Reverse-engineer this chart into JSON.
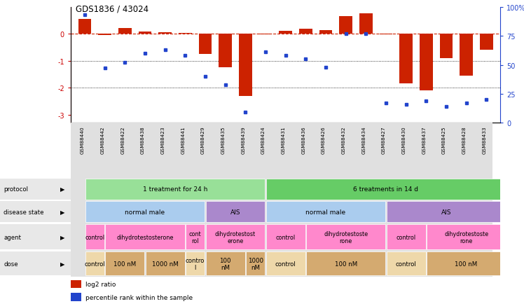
{
  "title": "GDS1836 / 43024",
  "samples": [
    "GSM88440",
    "GSM88442",
    "GSM88422",
    "GSM88438",
    "GSM88423",
    "GSM88441",
    "GSM88429",
    "GSM88435",
    "GSM88439",
    "GSM88424",
    "GSM88431",
    "GSM88436",
    "GSM88426",
    "GSM88432",
    "GSM88434",
    "GSM88427",
    "GSM88430",
    "GSM88437",
    "GSM88425",
    "GSM88428",
    "GSM88433"
  ],
  "log2_ratio": [
    0.55,
    -0.05,
    0.22,
    0.08,
    0.05,
    0.03,
    -0.75,
    -1.25,
    -2.3,
    -0.03,
    0.12,
    0.18,
    0.15,
    0.65,
    0.75,
    -0.03,
    -1.85,
    -2.1,
    -0.9,
    -1.55,
    -0.6
  ],
  "percentile_rank": [
    93,
    47,
    52,
    60,
    63,
    58,
    40,
    33,
    9,
    61,
    58,
    55,
    48,
    77,
    77,
    17,
    16,
    19,
    14,
    17,
    20
  ],
  "protocol_groups": [
    {
      "label": "1 treatment for 24 h",
      "start": 0,
      "end": 8,
      "color": "#98E098"
    },
    {
      "label": "6 treatments in 14 d",
      "start": 9,
      "end": 20,
      "color": "#66CC66"
    }
  ],
  "disease_state_groups": [
    {
      "label": "normal male",
      "start": 0,
      "end": 5,
      "color": "#AACCEE"
    },
    {
      "label": "AIS",
      "start": 6,
      "end": 8,
      "color": "#AA88CC"
    },
    {
      "label": "normal male",
      "start": 9,
      "end": 14,
      "color": "#AACCEE"
    },
    {
      "label": "AIS",
      "start": 15,
      "end": 20,
      "color": "#AA88CC"
    }
  ],
  "agent_groups": [
    {
      "label": "control",
      "start": 0,
      "end": 0,
      "color": "#FF88CC"
    },
    {
      "label": "dihydrotestosterone",
      "start": 1,
      "end": 4,
      "color": "#FF88CC"
    },
    {
      "label": "cont\nrol",
      "start": 5,
      "end": 5,
      "color": "#FF88CC"
    },
    {
      "label": "dihydrotestost\nerone",
      "start": 6,
      "end": 8,
      "color": "#FF88CC"
    },
    {
      "label": "control",
      "start": 9,
      "end": 10,
      "color": "#FF88CC"
    },
    {
      "label": "dihydrotestoste\nrone",
      "start": 11,
      "end": 14,
      "color": "#FF88CC"
    },
    {
      "label": "control",
      "start": 15,
      "end": 16,
      "color": "#FF88CC"
    },
    {
      "label": "dihydrotestoste\nrone",
      "start": 17,
      "end": 20,
      "color": "#FF88CC"
    }
  ],
  "dose_groups": [
    {
      "label": "control",
      "start": 0,
      "end": 0,
      "color": "#EED8AA"
    },
    {
      "label": "100 nM",
      "start": 1,
      "end": 2,
      "color": "#D4AA70"
    },
    {
      "label": "1000 nM",
      "start": 3,
      "end": 4,
      "color": "#D4AA70"
    },
    {
      "label": "contro\nl",
      "start": 5,
      "end": 5,
      "color": "#EED8AA"
    },
    {
      "label": "100\nnM",
      "start": 6,
      "end": 7,
      "color": "#D4AA70"
    },
    {
      "label": "1000\nnM",
      "start": 8,
      "end": 8,
      "color": "#D4AA70"
    },
    {
      "label": "control",
      "start": 9,
      "end": 10,
      "color": "#EED8AA"
    },
    {
      "label": "100 nM",
      "start": 11,
      "end": 14,
      "color": "#D4AA70"
    },
    {
      "label": "control",
      "start": 15,
      "end": 16,
      "color": "#EED8AA"
    },
    {
      "label": "100 nM",
      "start": 17,
      "end": 20,
      "color": "#D4AA70"
    }
  ],
  "bar_color": "#CC2200",
  "dot_color": "#2244CC",
  "ref_line_color": "#CC2200",
  "ylim_left": [
    -3.3,
    1.0
  ],
  "ylim_right": [
    0,
    100
  ],
  "yticks_left": [
    0,
    -1,
    -2,
    -3
  ],
  "yticks_right": [
    0,
    25,
    50,
    75,
    100
  ],
  "hline_y": [
    -1,
    -2
  ],
  "row_labels": [
    "protocol",
    "disease state",
    "agent",
    "dose"
  ],
  "legend_labels": [
    "log2 ratio",
    "percentile rank within the sample"
  ]
}
